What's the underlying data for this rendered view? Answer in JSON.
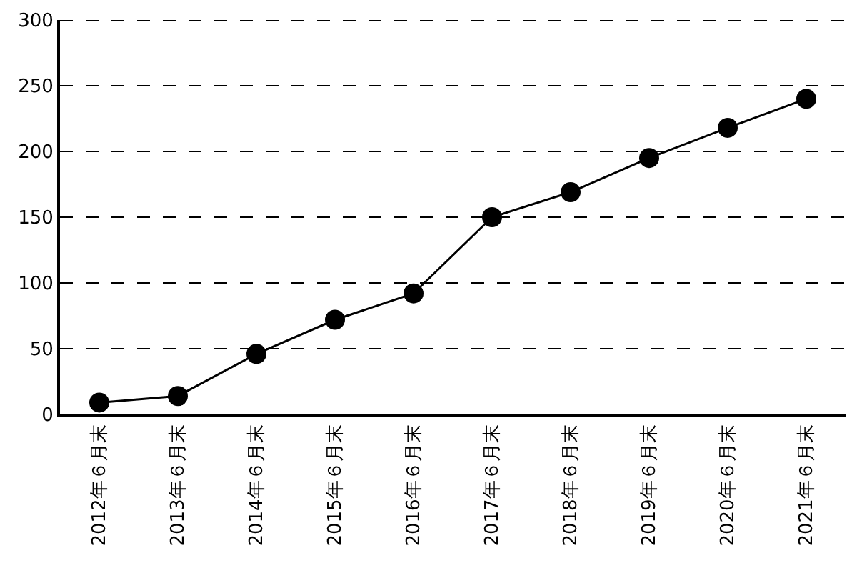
{
  "chart_data": {
    "type": "line",
    "categories": [
      "2012年６月末",
      "2013年６月末",
      "2014年６月末",
      "2015年６月末",
      "2016年６月末",
      "2017年６月末",
      "2018年６月末",
      "2019年６月末",
      "2020年６月末",
      "2021年６月末"
    ],
    "series": [
      {
        "color": "#000000",
        "values": [
          9,
          14,
          46,
          72,
          92,
          150,
          169,
          195,
          218,
          240
        ]
      }
    ],
    "ylim": [
      0,
      300
    ],
    "yticks": [
      0,
      50,
      100,
      150,
      200,
      250,
      300
    ],
    "grid": "y",
    "marker": "circle",
    "line_style": "solid"
  }
}
